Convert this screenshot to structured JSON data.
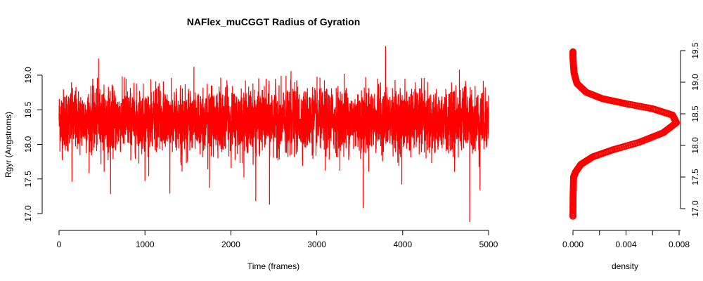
{
  "chart_data": [
    {
      "type": "line",
      "title": "NAFlex_muCGGT Radius of Gyration",
      "xlabel": "Time (frames)",
      "ylabel": "Rgyr (Angstroms)",
      "xlim": [
        0,
        5000
      ],
      "ylim": [
        17.0,
        19.0
      ],
      "x_ticks": [
        "0",
        "1000",
        "2000",
        "3000",
        "4000",
        "5000"
      ],
      "y_ticks": [
        "17.0",
        "17.5",
        "18.0",
        "18.5",
        "19.0"
      ],
      "color": "#ff0000",
      "series": [
        {
          "n_frames": 5000,
          "mean": 18.35,
          "sd": 0.22,
          "min": 16.88,
          "max": 19.42,
          "x": [
            0,
            150,
            330,
            460,
            600,
            780,
            1000,
            1290,
            1570,
            1750,
            1960,
            2290,
            2450,
            2700,
            3100,
            3320,
            3540,
            3800,
            3990,
            4250,
            4660,
            4780,
            4900,
            5000
          ],
          "values": [
            18.35,
            17.46,
            18.62,
            19.24,
            17.28,
            18.95,
            17.47,
            17.29,
            19.12,
            17.37,
            18.86,
            17.18,
            17.13,
            19.06,
            17.62,
            19.02,
            17.08,
            19.42,
            17.42,
            18.96,
            19.08,
            16.88,
            17.34,
            18.38
          ]
        }
      ]
    },
    {
      "type": "line",
      "xlabel": "density",
      "ylabel": "",
      "xlim": [
        0,
        0.008
      ],
      "ylim": [
        16.9,
        19.5
      ],
      "x_ticks": [
        "0.000",
        "0.004",
        "0.008"
      ],
      "y_ticks": [
        "17.0",
        "17.5",
        "18.0",
        "18.5",
        "19.0",
        "19.5"
      ],
      "color": "#ff0000",
      "series": [
        {
          "x": [
            0.0,
            1e-05,
            5e-05,
            0.0002,
            0.0006,
            0.0015,
            0.003,
            0.005,
            0.0068,
            0.0078,
            0.0075,
            0.006,
            0.004,
            0.0022,
            0.001,
            0.0003,
            8e-05,
            1e-05,
            0.0
          ],
          "values": [
            16.88,
            17.2,
            17.5,
            17.58,
            17.7,
            17.82,
            17.93,
            18.05,
            18.2,
            18.36,
            18.48,
            18.58,
            18.66,
            18.74,
            18.84,
            18.98,
            19.15,
            19.35,
            19.48
          ]
        }
      ]
    }
  ]
}
